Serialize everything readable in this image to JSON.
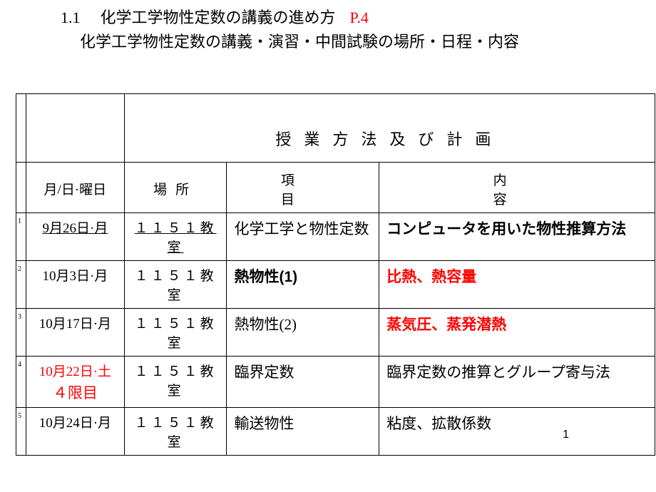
{
  "header": {
    "section_number": "1.1",
    "title": "化学工学物性定数の講義の進め方",
    "page_ref": "P.4",
    "subtitle": "化学工学物性定数の講義・演習・中間試験の場所・日程・内容"
  },
  "table": {
    "main_header": "授業方法及び計画",
    "columns": {
      "date": "月/日·曜日",
      "place": "場所",
      "item": "項目",
      "content": "内容"
    },
    "rows": [
      {
        "num": "1",
        "date": "9月26日·月",
        "date_underline": true,
        "place": "１１５１教室",
        "place_underline": true,
        "item": "化学工学と物性定数",
        "content": "コンピュータを用いた物性推算方法",
        "content_bold": true
      },
      {
        "num": "2",
        "date": "10月3日·月",
        "place": "１１５１教室",
        "item": "熱物性(1)",
        "item_bold": true,
        "content": "比熱、熱容量",
        "content_red": true,
        "content_bold": true
      },
      {
        "num": "3",
        "date": "10月17日·月",
        "place": "１１５１教室",
        "item": "熱物性(2)",
        "content": "蒸気圧、蒸発潜熱",
        "content_red": true,
        "content_bold": true
      },
      {
        "num": "4",
        "date": "10月22日·土",
        "date_sub": "４限目",
        "date_red": true,
        "place": "１１５１教室",
        "item": "臨界定数",
        "content": "臨界定数の推算とグループ寄与法"
      },
      {
        "num": "5",
        "date": "10月24日·月",
        "place": "１１５１教室",
        "item": "輸送物性",
        "content": "粘度、拡散係数"
      }
    ]
  },
  "page_number": "1",
  "colors": {
    "red": "#ff0000",
    "black": "#000000",
    "background": "#ffffff"
  }
}
